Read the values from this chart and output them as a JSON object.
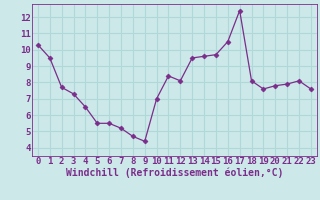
{
  "x": [
    0,
    1,
    2,
    3,
    4,
    5,
    6,
    7,
    8,
    9,
    10,
    11,
    12,
    13,
    14,
    15,
    16,
    17,
    18,
    19,
    20,
    21,
    22,
    23
  ],
  "y": [
    10.3,
    9.5,
    7.7,
    7.3,
    6.5,
    5.5,
    5.5,
    5.2,
    4.7,
    4.4,
    7.0,
    8.4,
    8.1,
    9.5,
    9.6,
    9.7,
    10.5,
    12.4,
    8.1,
    7.6,
    7.8,
    7.9,
    8.1,
    7.6
  ],
  "line_color": "#7b2d8b",
  "marker": "D",
  "marker_size": 2.5,
  "bg_color": "#cce8e8",
  "grid_color": "#b0d8d8",
  "xlabel": "Windchill (Refroidissement éolien,°C)",
  "xlim": [
    -0.5,
    23.5
  ],
  "ylim": [
    3.5,
    12.8
  ],
  "yticks": [
    4,
    5,
    6,
    7,
    8,
    9,
    10,
    11,
    12
  ],
  "xticks": [
    0,
    1,
    2,
    3,
    4,
    5,
    6,
    7,
    8,
    9,
    10,
    11,
    12,
    13,
    14,
    15,
    16,
    17,
    18,
    19,
    20,
    21,
    22,
    23
  ],
  "xlabel_color": "#7b2d8b",
  "tick_color": "#7b2d8b",
  "font_size_xlabel": 7.0,
  "font_size_tick": 6.5
}
